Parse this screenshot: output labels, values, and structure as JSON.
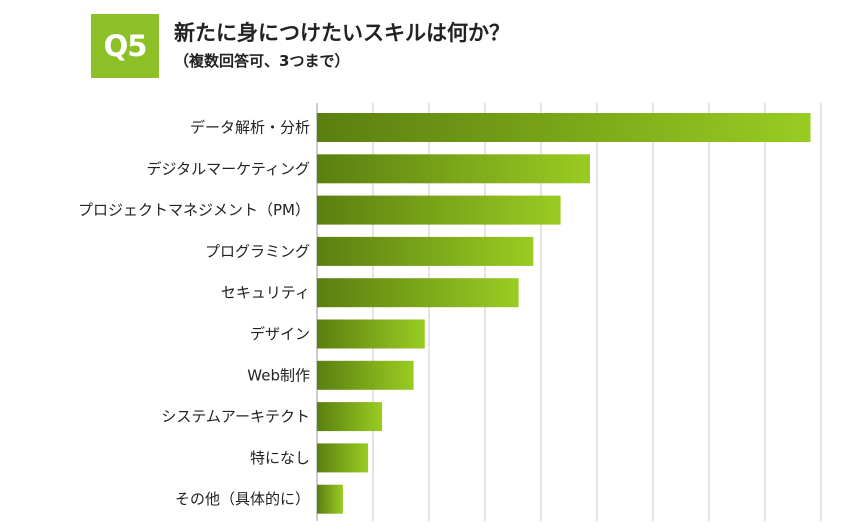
{
  "badge": "Q5",
  "title": "新たに身につけたいスキルは何か？",
  "subtitle": "（複数回答可、3つまで）",
  "colors": {
    "bar_dark": "#5a7f10",
    "bar_light": "#99cc22",
    "badge": "#8cc026",
    "grid": "#c8c8c8"
  },
  "chart_data": {
    "type": "bar",
    "orientation": "horizontal",
    "title": "新たに身につけたいスキルは何か？",
    "subtitle": "（複数回答可、3つまで）",
    "categories": [
      "データ解析・分析",
      "デジタルマーケティング",
      "プロジェクトマネジメント（PM）",
      "プログラミング",
      "セキュリティ",
      "デザイン",
      "Web制作",
      "システムアーキテクト",
      "特になし",
      "その他（具体的に）"
    ],
    "values": [
      70.5,
      39.0,
      34.8,
      30.9,
      28.8,
      15.4,
      13.8,
      9.3,
      7.3,
      3.7
    ],
    "xlim": [
      0,
      80
    ],
    "grid": true,
    "legend": "none"
  }
}
